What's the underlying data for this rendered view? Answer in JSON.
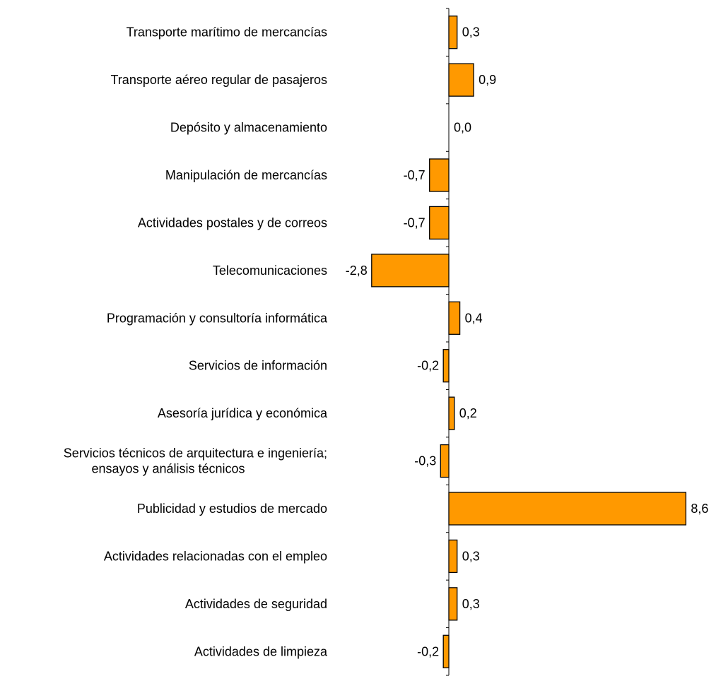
{
  "chart_data": {
    "type": "bar",
    "orientation": "horizontal",
    "categories": [
      [
        "Transporte marítimo de mercancías"
      ],
      [
        "Transporte aéreo regular de pasajeros"
      ],
      [
        "Depósito y almacenamiento"
      ],
      [
        "Manipulación de mercancías"
      ],
      [
        "Actividades postales y de correos"
      ],
      [
        "Telecomunicaciones"
      ],
      [
        "Programación y consultoría informática"
      ],
      [
        "Servicios de información"
      ],
      [
        "Asesoría jurídica y económica"
      ],
      [
        "Servicios técnicos de arquitectura e ingeniería;",
        "ensayos y análisis técnicos"
      ],
      [
        "Publicidad y estudios de mercado"
      ],
      [
        "Actividades relacionadas con el empleo"
      ],
      [
        "Actividades de seguridad"
      ],
      [
        "Actividades de limpieza"
      ]
    ],
    "values": [
      0.3,
      0.9,
      0.0,
      -0.7,
      -0.7,
      -2.8,
      0.4,
      -0.2,
      0.2,
      -0.3,
      8.6,
      0.3,
      0.3,
      -0.2
    ],
    "value_labels": [
      "0,3",
      "0,9",
      "0,0",
      "-0,7",
      "-0,7",
      "-2,8",
      "0,4",
      "-0,2",
      "0,2",
      "-0,3",
      "8,6",
      "0,3",
      "0,3",
      "-0,2"
    ],
    "title": "",
    "xlabel": "",
    "ylabel": "",
    "grid": false,
    "legend": "none",
    "bar_color": "#FF9900",
    "bar_edge_color": "#000000"
  }
}
